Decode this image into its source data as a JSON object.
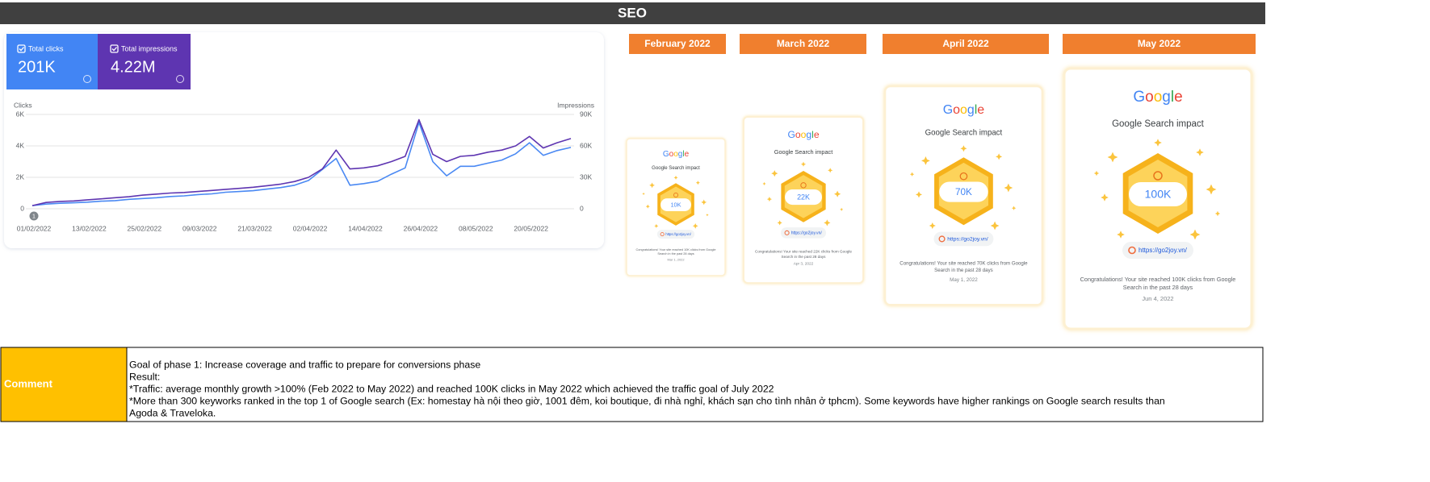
{
  "header": {
    "title": "SEO"
  },
  "chart_data": {
    "type": "line",
    "x": [
      "01/02/2022",
      "04/02/2022",
      "07/02/2022",
      "10/02/2022",
      "13/02/2022",
      "16/02/2022",
      "19/02/2022",
      "22/02/2022",
      "25/02/2022",
      "28/02/2022",
      "03/03/2022",
      "06/03/2022",
      "09/03/2022",
      "12/03/2022",
      "15/03/2022",
      "18/03/2022",
      "21/03/2022",
      "24/03/2022",
      "27/03/2022",
      "30/03/2022",
      "02/04/2022",
      "05/04/2022",
      "08/04/2022",
      "11/04/2022",
      "14/04/2022",
      "17/04/2022",
      "20/04/2022",
      "23/04/2022",
      "26/04/2022",
      "29/04/2022",
      "02/05/2022",
      "05/05/2022",
      "08/05/2022",
      "11/05/2022",
      "14/05/2022",
      "17/05/2022",
      "20/05/2022",
      "23/05/2022",
      "26/05/2022",
      "29/05/2022"
    ],
    "xlim": [
      "01/02/2022",
      "29/05/2022"
    ],
    "xticks": [
      "01/02/2022",
      "13/02/2022",
      "25/02/2022",
      "09/03/2022",
      "21/03/2022",
      "02/04/2022",
      "14/04/2022",
      "26/04/2022",
      "08/05/2022",
      "20/05/2022"
    ],
    "ylabel": "Clicks",
    "y2label": "Impressions",
    "ylim": [
      0,
      6000
    ],
    "yticks": [
      0,
      {
        "value": 2000,
        "label": "2K"
      },
      {
        "value": 4000,
        "label": "4K"
      },
      {
        "value": 6000,
        "label": "6K"
      }
    ],
    "y2lim": [
      0,
      90000
    ],
    "y2ticks": [
      0,
      {
        "value": 30000,
        "label": "30K"
      },
      {
        "value": 60000,
        "label": "60K"
      },
      {
        "value": 90000,
        "label": "90K"
      }
    ],
    "grid": true,
    "annotation": "1",
    "series": [
      {
        "name": "Total clicks",
        "total": "201K",
        "color": "#4a89f3",
        "values": [
          200,
          300,
          350,
          380,
          420,
          480,
          520,
          600,
          650,
          700,
          780,
          820,
          900,
          950,
          1050,
          1100,
          1150,
          1250,
          1350,
          1500,
          1800,
          2500,
          3200,
          1500,
          1600,
          1750,
          2200,
          2600,
          5500,
          3000,
          2100,
          2700,
          2700,
          2900,
          3100,
          3500,
          4200,
          3400,
          3700,
          3900
        ]
      },
      {
        "name": "Total impressions",
        "total": "4.22M",
        "color": "#5e35b1",
        "axis": "y2",
        "values": [
          3000,
          6000,
          7000,
          7500,
          8500,
          9500,
          10500,
          11500,
          13000,
          14000,
          15000,
          15500,
          16500,
          17500,
          18500,
          19500,
          20500,
          22000,
          23500,
          26000,
          30000,
          38000,
          56000,
          38000,
          39000,
          41000,
          45000,
          50000,
          85000,
          52000,
          45000,
          50000,
          51000,
          54000,
          56000,
          60000,
          69000,
          58000,
          63000,
          67000
        ]
      }
    ]
  },
  "cards": [
    {
      "month": "February 2022",
      "logo": "Google",
      "heading": "Google Search impact",
      "badge": "10K",
      "url": "https://go2joy.vn/",
      "message": [
        "Congratulations! Your site reached 10K clicks from Google",
        "Search in the past 28 days"
      ],
      "date": "Mar 1, 2022"
    },
    {
      "month": "March 2022",
      "logo": "Google",
      "heading": "Google Search impact",
      "badge": "22K",
      "url": "https://go2joy.vn/",
      "message": [
        "Congratulations! Your site reached 22K clicks from Google",
        "Search in the past 28 days"
      ],
      "date": "Apr 3, 2022"
    },
    {
      "month": "April 2022",
      "logo": "Google",
      "heading": "Google Search impact",
      "badge": "70K",
      "url": "https://go2joy.vn/",
      "message": [
        "Congratulations! Your site reached 70K clicks from Google",
        "Search in the past 28 days"
      ],
      "date": "May 1, 2022"
    },
    {
      "month": "May 2022",
      "logo": "Google",
      "heading": "Google Search impact",
      "badge": "100K",
      "url": "https://go2joy.vn/",
      "message": [
        "Congratulations! Your site reached 100K clicks from Google",
        "Search in the past 28 days"
      ],
      "date": "Jun 4, 2022"
    }
  ],
  "comment": {
    "label": "Comment",
    "lines": [
      "Goal of phase 1: Increase coverage and traffic to prepare for conversions phase",
      "Result:",
      "*Traffic: average monthly growth >100% (Feb 2022 to May 2022) and reached 100K clicks in May 2022 which achieved the traffic goal of July 2022",
      "*More than 300 keyworks ranked in the top 1 of Google search (Ex: homestay hà nội theo giờ, 1001 đêm, koi boutique, đi nhà nghỉ, khách sạn cho tình nhân ở tphcm). Some keywords have higher rankings on Google search results than",
      "Agoda & Traveloka."
    ]
  }
}
